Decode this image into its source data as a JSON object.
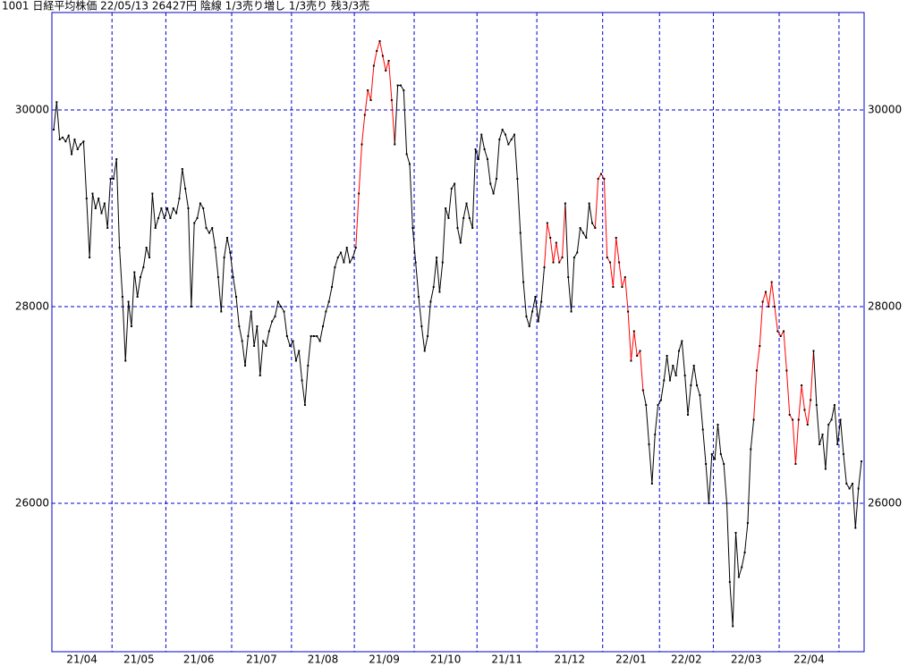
{
  "chart_data": {
    "type": "line",
    "header": "1001 日経平均株価 22/05/13 26427円 陰線 1/3売り増し 1/3売り 残3/3売",
    "ylim": [
      24491,
      30991
    ],
    "yticks": [
      26000,
      28000,
      30000
    ],
    "grid": true,
    "frame_color": "#0000cc",
    "line_colors": [
      "#000000",
      "#ff0000"
    ],
    "months": [
      {
        "label": "21/04",
        "values": [
          29800,
          30080,
          29700,
          29720,
          29680,
          29740,
          29550,
          29700,
          29600,
          29650,
          29680,
          29100,
          28500,
          29150,
          29000,
          29100,
          28950,
          29050,
          28800,
          29300
        ],
        "color_index": [
          0,
          0,
          0,
          0,
          0,
          0,
          0,
          0,
          0,
          0,
          0,
          0,
          0,
          0,
          0,
          0,
          0,
          0,
          0,
          0
        ]
      },
      {
        "label": "21/05",
        "values": [
          29300,
          29500,
          28600,
          28100,
          27450,
          28050,
          27800,
          28350,
          28100,
          28300,
          28400,
          28600,
          28500,
          29150,
          28800,
          28900,
          29000,
          28900
        ],
        "color_index": [
          0,
          0,
          0,
          0,
          0,
          0,
          0,
          0,
          0,
          0,
          0,
          0,
          0,
          0,
          0,
          0,
          0,
          0
        ]
      },
      {
        "label": "21/06",
        "values": [
          29000,
          28900,
          29000,
          28950,
          29100,
          29400,
          29200,
          29000,
          28000,
          28850,
          28900,
          29050,
          29000,
          28800,
          28750,
          28800,
          28600,
          28300,
          27950,
          28500,
          28700,
          28550
        ],
        "color_index": [
          0,
          0,
          0,
          0,
          0,
          0,
          0,
          0,
          0,
          0,
          0,
          0,
          0,
          0,
          0,
          0,
          0,
          0,
          0,
          0,
          0,
          0
        ]
      },
      {
        "label": "21/07",
        "values": [
          28300,
          28100,
          27800,
          27650,
          27400,
          27700,
          27950,
          27600,
          27800,
          27300,
          27650,
          27600,
          27750,
          27850,
          27900,
          28050,
          28000,
          27950,
          27700,
          27600
        ],
        "color_index": [
          0,
          0,
          0,
          0,
          0,
          0,
          0,
          0,
          0,
          0,
          0,
          0,
          0,
          0,
          0,
          0,
          0,
          0,
          0,
          0
        ]
      },
      {
        "label": "21/08",
        "values": [
          27650,
          27450,
          27550,
          27250,
          27000,
          27400,
          27700,
          27700,
          27700,
          27650,
          27800,
          27950,
          28050,
          28200,
          28400,
          28500,
          28550,
          28450,
          28600,
          28450,
          28500
        ],
        "color_index": [
          0,
          0,
          0,
          0,
          0,
          0,
          0,
          0,
          0,
          0,
          0,
          0,
          0,
          0,
          0,
          0,
          0,
          0,
          0,
          0,
          0
        ]
      },
      {
        "label": "21/09",
        "values": [
          28600,
          29150,
          29650,
          29950,
          30200,
          30100,
          30450,
          30600,
          30700,
          30550,
          30400,
          30500,
          30100,
          29650,
          30250,
          30250,
          30200,
          29550,
          29450,
          28800
        ],
        "color_index": [
          0,
          1,
          1,
          1,
          1,
          1,
          1,
          1,
          1,
          1,
          1,
          1,
          1,
          1,
          0,
          0,
          0,
          0,
          0,
          0
        ]
      },
      {
        "label": "21/10",
        "values": [
          28450,
          28100,
          27800,
          27550,
          27700,
          28050,
          28200,
          28500,
          28150,
          28450,
          29000,
          28900,
          29200,
          29250,
          28800,
          28650,
          28900,
          29050,
          28900,
          28800,
          29600
        ],
        "color_index": [
          0,
          0,
          0,
          0,
          0,
          0,
          0,
          0,
          0,
          0,
          0,
          0,
          0,
          0,
          0,
          0,
          0,
          0,
          0,
          0,
          0
        ]
      },
      {
        "label": "21/11",
        "values": [
          29500,
          29750,
          29600,
          29500,
          29250,
          29150,
          29300,
          29700,
          29800,
          29750,
          29650,
          29700,
          29750,
          29300,
          28750,
          28250,
          27900,
          27800,
          27950,
          28100
        ],
        "color_index": [
          0,
          0,
          0,
          0,
          0,
          0,
          0,
          0,
          0,
          0,
          0,
          0,
          0,
          0,
          0,
          0,
          0,
          0,
          0,
          0
        ]
      },
      {
        "label": "21/12",
        "values": [
          27850,
          28050,
          28400,
          28850,
          28700,
          28450,
          28650,
          28450,
          28500,
          29050,
          28300,
          27950,
          28500,
          28550,
          28800,
          28750,
          28700,
          29050,
          28850,
          28800,
          29300,
          29350
        ],
        "color_index": [
          0,
          0,
          0,
          1,
          1,
          1,
          1,
          1,
          1,
          1,
          0,
          0,
          0,
          0,
          0,
          0,
          0,
          0,
          0,
          0,
          1,
          1
        ]
      },
      {
        "label": "22/01",
        "values": [
          29300,
          28500,
          28450,
          28200,
          28700,
          28450,
          28200,
          28300,
          27950,
          27450,
          27750,
          27500,
          27550,
          27150,
          27000,
          26600,
          26200,
          26700,
          27000
        ],
        "color_index": [
          1,
          1,
          1,
          1,
          1,
          1,
          1,
          1,
          1,
          1,
          1,
          1,
          1,
          1,
          0,
          0,
          0,
          0,
          0
        ]
      },
      {
        "label": "22/02",
        "values": [
          27050,
          27250,
          27500,
          27250,
          27400,
          27300,
          27550,
          27650,
          27300,
          26900,
          27200,
          27400,
          27200,
          27100,
          26750,
          26400,
          26000,
          26500
        ],
        "color_index": [
          0,
          0,
          0,
          0,
          0,
          0,
          0,
          0,
          0,
          0,
          0,
          0,
          0,
          0,
          0,
          0,
          0,
          0
        ]
      },
      {
        "label": "22/03",
        "values": [
          26450,
          26800,
          26500,
          26400,
          26000,
          25200,
          24750,
          25700,
          25250,
          25350,
          25500,
          25800,
          26550,
          26850,
          27350,
          27600,
          28050,
          28150,
          28000,
          28250,
          28000,
          27750
        ],
        "color_index": [
          0,
          0,
          0,
          0,
          0,
          0,
          0,
          0,
          0,
          0,
          0,
          0,
          0,
          0,
          1,
          1,
          1,
          1,
          1,
          1,
          1,
          1
        ]
      },
      {
        "label": "22/04",
        "values": [
          27700,
          27750,
          27350,
          26900,
          26850,
          26400,
          26850,
          27200,
          26950,
          26800,
          27050,
          27550,
          27000,
          26600,
          26700,
          26350,
          26800,
          26850,
          27000,
          26600
        ],
        "color_index": [
          1,
          1,
          1,
          1,
          1,
          1,
          1,
          1,
          1,
          1,
          1,
          1,
          0,
          0,
          0,
          0,
          0,
          0,
          0,
          0
        ]
      },
      {
        "label": null,
        "values": [
          26850,
          26500,
          26200,
          26150,
          26200,
          25750,
          26150,
          26427
        ],
        "color_index": [
          0,
          0,
          0,
          0,
          0,
          0,
          0,
          0
        ]
      }
    ]
  }
}
